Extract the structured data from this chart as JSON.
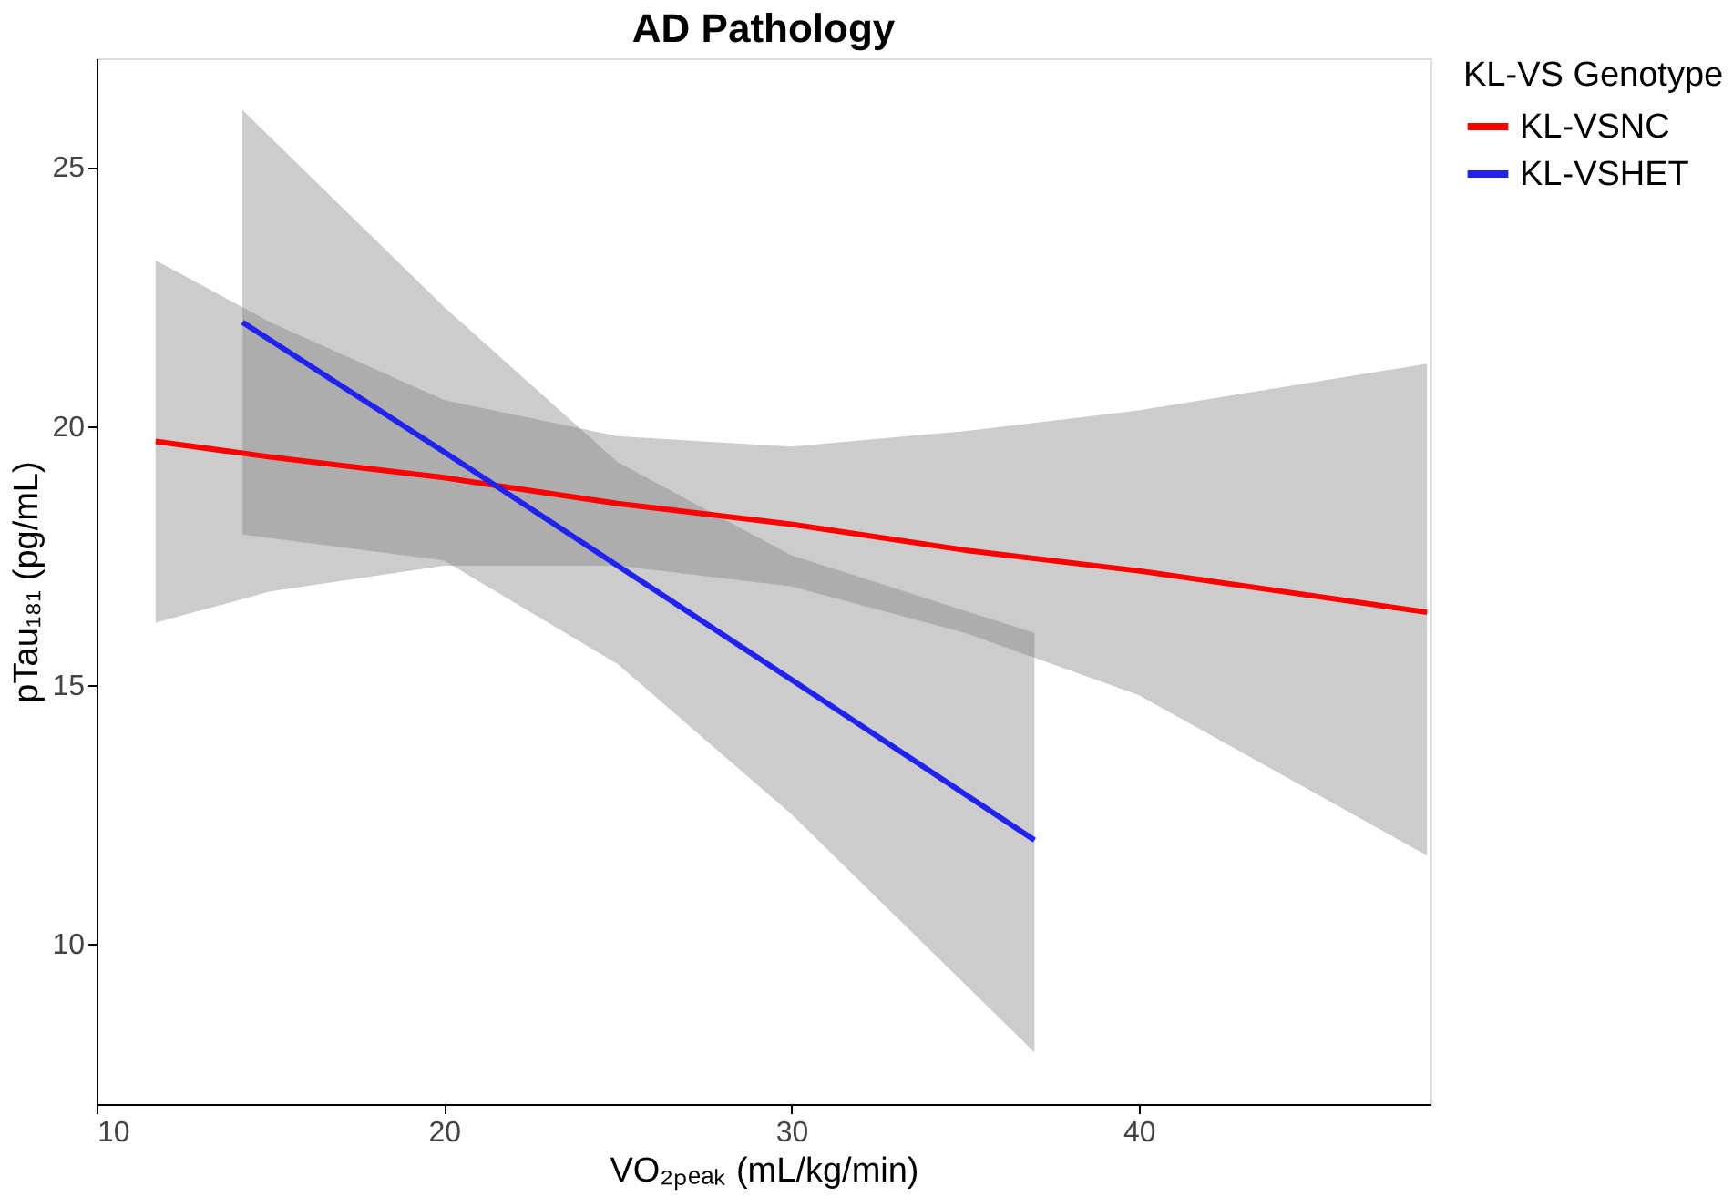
{
  "chart_data": {
    "type": "line",
    "title": "AD Pathology",
    "xlabel": "VO₂ₚₑₐₖ (mL/kg/min)",
    "ylabel": "pTau₁₈₁ (pg/mL)",
    "legend_title": "KL-VS Genotype",
    "legend": "right",
    "grid": false,
    "line_style": "solid",
    "marker": "none",
    "xlim": [
      10,
      48.4
    ],
    "ylim": [
      6.9,
      27.1
    ],
    "xticks": [
      10,
      20,
      30,
      40
    ],
    "yticks": [
      10,
      15,
      20,
      25
    ],
    "series": [
      {
        "name": "KL-VSNC",
        "color": "#ff0000",
        "x": [
          11.7,
          15,
          20,
          25,
          30,
          35,
          40,
          48.3
        ],
        "values": [
          19.7,
          19.4,
          19.0,
          18.5,
          18.1,
          17.6,
          17.2,
          16.4
        ],
        "lower": [
          16.2,
          16.8,
          17.3,
          17.3,
          16.9,
          16.0,
          14.8,
          11.7
        ],
        "upper": [
          23.2,
          22.0,
          20.5,
          19.8,
          19.6,
          19.9,
          20.3,
          21.2
        ]
      },
      {
        "name": "KL-VSHET",
        "color": "#2222ee",
        "x": [
          14.2,
          20,
          25,
          30,
          37
        ],
        "values": [
          22.0,
          19.5,
          17.3,
          15.1,
          12.0
        ],
        "lower": [
          17.9,
          17.4,
          15.4,
          12.5,
          7.9
        ],
        "upper": [
          26.1,
          22.3,
          19.3,
          17.5,
          16.0
        ]
      }
    ]
  }
}
